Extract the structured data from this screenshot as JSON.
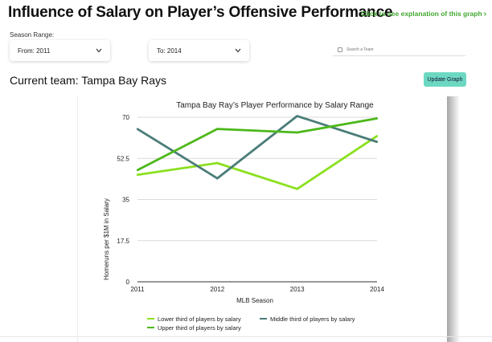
{
  "header": {
    "title": "Influence of Salary on Player’s Offensive Performance",
    "explain_link": "Click to see explanation of this graph",
    "explain_chevron": "›"
  },
  "filters": {
    "season_range_label": "Season Range:",
    "from_value": "From: 2011",
    "to_value": "To: 2014",
    "search_placeholder": "Search a Team"
  },
  "team": {
    "current_team": "Current team: Tampa Bay Rays",
    "update_button": "Update Graph"
  },
  "colors": {
    "lower": "#8be01f",
    "middle": "#4a7d78",
    "upper": "#4cb81a",
    "accent_button": "#6dd8c2",
    "link": "#43a832"
  },
  "chart_data": {
    "type": "line",
    "title": "Tampa Bay Ray’s Player Performance by Salary Range",
    "xlabel": "MLB Season",
    "ylabel": "Homeruns per $1M in Salary",
    "x": [
      "2011",
      "2012",
      "2013",
      "2014"
    ],
    "yticks": [
      "0",
      "17.5",
      "35",
      "52.5",
      "70"
    ],
    "ylim": [
      0,
      70
    ],
    "grid": true,
    "legend_position": "bottom",
    "series": [
      {
        "name": "Lower third of players by salary",
        "values": [
          45.5,
          50.5,
          39.5,
          62
        ]
      },
      {
        "name": "Middle third of players by salary",
        "values": [
          65,
          44,
          70.5,
          59.5
        ]
      },
      {
        "name": "Upper third of players by salary",
        "values": [
          47.5,
          65,
          63.5,
          69.5
        ]
      }
    ]
  }
}
